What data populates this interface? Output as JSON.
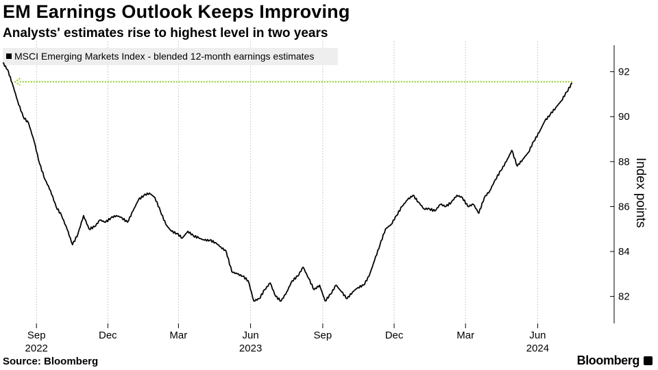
{
  "header": {
    "title": "EM Earnings Outlook Keeps Improving",
    "subtitle": "Analysts' estimates rise to highest level in two years"
  },
  "footer": {
    "source": "Source: Bloomberg",
    "brand": "Bloomberg"
  },
  "colors": {
    "line": "#000000",
    "reference_arrow": "#8ccc1f",
    "grid": "#bbbbbb",
    "legend_bg": "#eeeeee"
  },
  "chart_data": {
    "type": "line",
    "title": "EM Earnings Outlook Keeps Improving",
    "subtitle": "Analysts' estimates rise to highest level in two years",
    "ylabel": "Index points",
    "xlabel": "",
    "ylim": [
      80.8,
      93.3
    ],
    "y_ticks": [
      82,
      84,
      86,
      88,
      90,
      92
    ],
    "y_axis_side": "right",
    "xlim": [
      "2022-07-20",
      "2024-08-20"
    ],
    "x_ticks": [
      {
        "date": "2022-09-01",
        "label": "Sep",
        "year": "2022"
      },
      {
        "date": "2022-12-01",
        "label": "Dec",
        "year": ""
      },
      {
        "date": "2023-03-01",
        "label": "Mar",
        "year": ""
      },
      {
        "date": "2023-06-01",
        "label": "Jun",
        "year": "2023"
      },
      {
        "date": "2023-09-01",
        "label": "Sep",
        "year": ""
      },
      {
        "date": "2023-12-01",
        "label": "Dec",
        "year": ""
      },
      {
        "date": "2024-03-01",
        "label": "Mar",
        "year": ""
      },
      {
        "date": "2024-06-01",
        "label": "Jun",
        "year": "2024"
      }
    ],
    "grid": "vertical dotted",
    "legend_placement": "top-left",
    "series": [
      {
        "name": "MSCI Emerging Markets Index - blended 12-month earnings estimates",
        "points": [
          [
            "2022-07-20",
            92.4
          ],
          [
            "2022-07-26",
            92.1
          ],
          [
            "2022-08-01",
            91.5
          ],
          [
            "2022-08-08",
            90.7
          ],
          [
            "2022-08-15",
            90.0
          ],
          [
            "2022-08-22",
            89.7
          ],
          [
            "2022-08-29",
            88.9
          ],
          [
            "2022-09-05",
            87.9
          ],
          [
            "2022-09-12",
            87.2
          ],
          [
            "2022-09-19",
            86.7
          ],
          [
            "2022-09-26",
            86.0
          ],
          [
            "2022-10-03",
            85.6
          ],
          [
            "2022-10-10",
            85.0
          ],
          [
            "2022-10-17",
            84.3
          ],
          [
            "2022-10-24",
            84.8
          ],
          [
            "2022-10-31",
            85.6
          ],
          [
            "2022-11-07",
            85.0
          ],
          [
            "2022-11-14",
            85.1
          ],
          [
            "2022-11-21",
            85.4
          ],
          [
            "2022-11-28",
            85.3
          ],
          [
            "2022-12-05",
            85.5
          ],
          [
            "2022-12-12",
            85.6
          ],
          [
            "2022-12-19",
            85.5
          ],
          [
            "2022-12-26",
            85.3
          ],
          [
            "2023-01-02",
            85.8
          ],
          [
            "2023-01-09",
            86.3
          ],
          [
            "2023-01-16",
            86.5
          ],
          [
            "2023-01-23",
            86.6
          ],
          [
            "2023-01-30",
            86.4
          ],
          [
            "2023-02-06",
            85.8
          ],
          [
            "2023-02-13",
            85.2
          ],
          [
            "2023-02-20",
            84.9
          ],
          [
            "2023-02-27",
            84.8
          ],
          [
            "2023-03-06",
            84.6
          ],
          [
            "2023-03-13",
            84.9
          ],
          [
            "2023-03-20",
            84.7
          ],
          [
            "2023-03-27",
            84.6
          ],
          [
            "2023-04-03",
            84.5
          ],
          [
            "2023-04-10",
            84.5
          ],
          [
            "2023-04-17",
            84.4
          ],
          [
            "2023-04-24",
            84.2
          ],
          [
            "2023-05-01",
            84.0
          ],
          [
            "2023-05-08",
            83.1
          ],
          [
            "2023-05-15",
            83.0
          ],
          [
            "2023-05-22",
            82.9
          ],
          [
            "2023-05-29",
            82.7
          ],
          [
            "2023-06-05",
            81.8
          ],
          [
            "2023-06-12",
            81.9
          ],
          [
            "2023-06-19",
            82.3
          ],
          [
            "2023-06-26",
            82.6
          ],
          [
            "2023-07-03",
            82.0
          ],
          [
            "2023-07-10",
            81.8
          ],
          [
            "2023-07-17",
            82.2
          ],
          [
            "2023-07-24",
            82.7
          ],
          [
            "2023-07-31",
            82.9
          ],
          [
            "2023-08-07",
            83.3
          ],
          [
            "2023-08-14",
            82.8
          ],
          [
            "2023-08-21",
            82.3
          ],
          [
            "2023-08-28",
            82.5
          ],
          [
            "2023-09-04",
            81.8
          ],
          [
            "2023-09-11",
            82.1
          ],
          [
            "2023-09-18",
            82.5
          ],
          [
            "2023-09-25",
            82.2
          ],
          [
            "2023-10-02",
            81.9
          ],
          [
            "2023-10-09",
            82.2
          ],
          [
            "2023-10-16",
            82.4
          ],
          [
            "2023-10-23",
            82.5
          ],
          [
            "2023-10-30",
            82.9
          ],
          [
            "2023-11-06",
            83.6
          ],
          [
            "2023-11-13",
            84.3
          ],
          [
            "2023-11-20",
            85.0
          ],
          [
            "2023-11-27",
            85.2
          ],
          [
            "2023-12-04",
            85.6
          ],
          [
            "2023-12-11",
            86.0
          ],
          [
            "2023-12-18",
            86.3
          ],
          [
            "2023-12-25",
            86.5
          ],
          [
            "2024-01-01",
            86.2
          ],
          [
            "2024-01-08",
            85.9
          ],
          [
            "2024-01-15",
            85.9
          ],
          [
            "2024-01-22",
            85.8
          ],
          [
            "2024-01-29",
            86.1
          ],
          [
            "2024-02-05",
            86.0
          ],
          [
            "2024-02-12",
            86.2
          ],
          [
            "2024-02-19",
            86.5
          ],
          [
            "2024-02-26",
            86.4
          ],
          [
            "2024-03-04",
            86.0
          ],
          [
            "2024-03-11",
            86.1
          ],
          [
            "2024-03-18",
            85.7
          ],
          [
            "2024-03-25",
            86.4
          ],
          [
            "2024-04-01",
            86.7
          ],
          [
            "2024-04-08",
            87.2
          ],
          [
            "2024-04-15",
            87.6
          ],
          [
            "2024-04-22",
            88.0
          ],
          [
            "2024-04-29",
            88.5
          ],
          [
            "2024-05-06",
            87.8
          ],
          [
            "2024-05-13",
            88.1
          ],
          [
            "2024-05-20",
            88.4
          ],
          [
            "2024-05-27",
            88.9
          ],
          [
            "2024-06-03",
            89.3
          ],
          [
            "2024-06-10",
            89.8
          ],
          [
            "2024-06-17",
            90.1
          ],
          [
            "2024-06-24",
            90.4
          ],
          [
            "2024-07-01",
            90.7
          ],
          [
            "2024-07-08",
            91.1
          ],
          [
            "2024-07-15",
            91.5
          ]
        ]
      }
    ],
    "annotations": [
      {
        "type": "horizontal-arrow",
        "y": 91.55,
        "from": "2024-07-15",
        "to": "2022-08-05"
      }
    ]
  }
}
